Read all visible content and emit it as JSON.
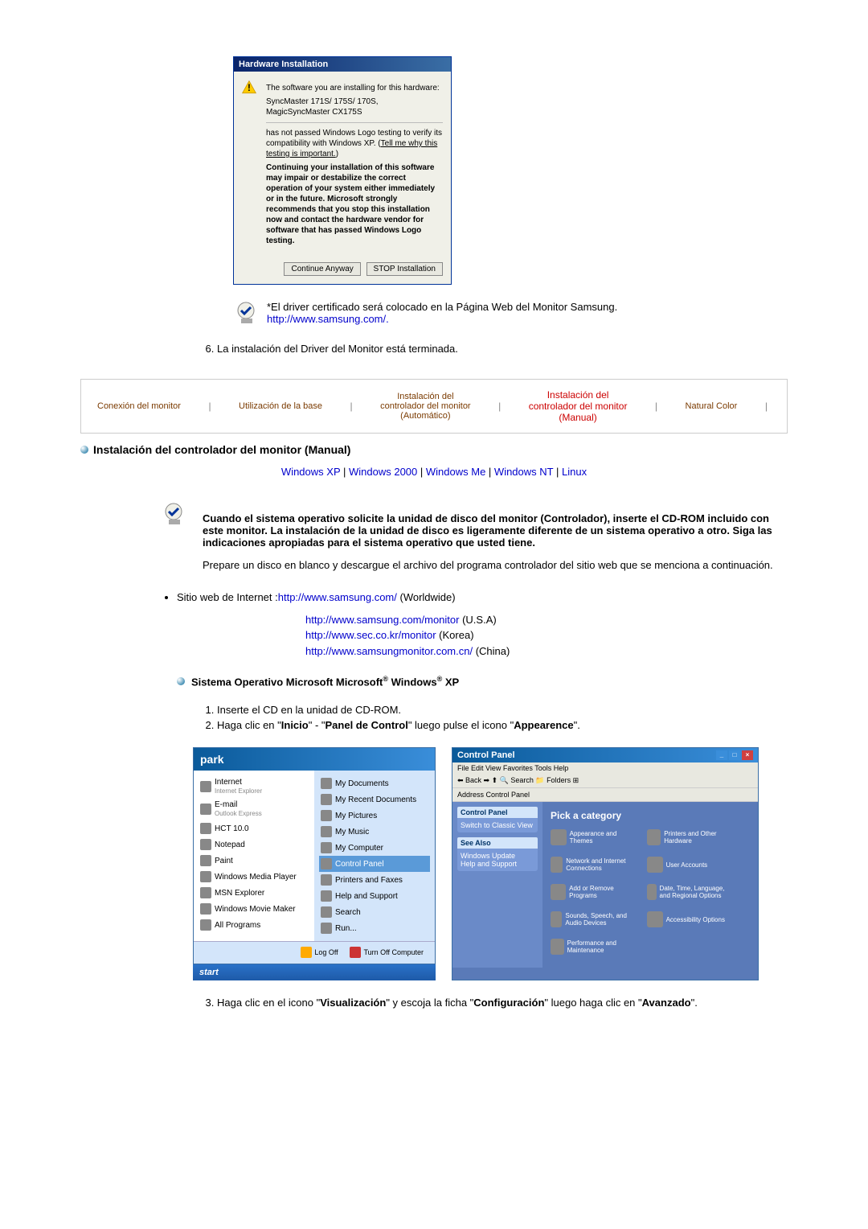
{
  "dialog": {
    "title": "Hardware Installation",
    "line1": "The software you are installing for this hardware:",
    "line2": "SyncMaster 171S/ 175S/ 170S, MagicSyncMaster CX175S",
    "line3a": "has not passed Windows Logo testing to verify its compatibility with Windows XP. (",
    "line3_link": "Tell me why this testing is important.",
    "line3b": ")",
    "line4": "Continuing your installation of this software may impair or destabilize the correct operation of your system either immediately or in the future. Microsoft strongly recommends that you stop this installation now and contact the hardware vendor for software that has passed Windows Logo testing.",
    "btn_continue": "Continue Anyway",
    "btn_stop": "STOP Installation"
  },
  "note": {
    "text": "*El driver certificado será colocado en la Página Web del Monitor Samsung.",
    "link": "http://www.samsung.com/."
  },
  "step6": "La instalación del Driver del Monitor está terminada.",
  "tabs": {
    "t1": "Conexión del monitor",
    "t2": "Utilización de la base",
    "t3a": "Instalación del",
    "t3b": "controlador del monitor",
    "t3c": "(Automático)",
    "t4a": "Instalación del",
    "t4b": "controlador del monitor",
    "t4c": "(Manual)",
    "t5": "Natural Color"
  },
  "section_title": "Instalación del controlador del monitor (Manual)",
  "os_links": {
    "xp": "Windows XP",
    "w2000": "Windows 2000",
    "wme": "Windows Me",
    "wnt": "Windows NT",
    "linux": "Linux"
  },
  "info": {
    "p1": "Cuando el sistema operativo solicite la unidad de disco del monitor (Controlador), inserte el CD-ROM incluido con este monitor. La instalación de la unidad de disco es ligeramente diferente de un sistema operativo a otro. Siga las indicaciones apropiadas para el sistema operativo que usted tiene.",
    "p2": "Prepare un disco en blanco y descargue el archivo del programa controlador del sitio web que se menciona a continuación."
  },
  "sites": {
    "label": "Sitio web de Internet :",
    "s1": "http://www.samsung.com/",
    "s1t": " (Worldwide)",
    "s2": "http://www.samsung.com/monitor",
    "s2t": " (U.S.A)",
    "s3": "http://www.sec.co.kr/monitor",
    "s3t": " (Korea)",
    "s4": "http://www.samsungmonitor.com.cn/",
    "s4t": " (China)"
  },
  "os_section": "Sistema Operativo Microsoft Microsoft",
  "os_section2": " Windows",
  "os_section3": " XP",
  "steps": {
    "s1": "Inserte el CD en la unidad de CD-ROM.",
    "s2a": "Haga clic en \"",
    "s2b": "Inicio",
    "s2c": "\" - \"",
    "s2d": "Panel de Control",
    "s2e": "\" luego pulse el icono \"",
    "s2f": "Appearence",
    "s2g": "\".",
    "s3a": "Haga clic en el icono \"",
    "s3b": "Visualización",
    "s3c": "\" y escoja la ficha \"",
    "s3d": "Configuración",
    "s3e": "\" luego haga clic en \"",
    "s3f": "Avanzado",
    "s3g": "\"."
  },
  "startmenu": {
    "user": "park",
    "left": [
      {
        "label": "Internet",
        "sublabel": "Internet Explorer"
      },
      {
        "label": "E-mail",
        "sublabel": "Outlook Express"
      },
      {
        "label": "HCT 10.0"
      },
      {
        "label": "Notepad"
      },
      {
        "label": "Paint"
      },
      {
        "label": "Windows Media Player"
      },
      {
        "label": "MSN Explorer"
      },
      {
        "label": "Windows Movie Maker"
      },
      {
        "label": "All Programs"
      }
    ],
    "right": [
      {
        "label": "My Documents"
      },
      {
        "label": "My Recent Documents"
      },
      {
        "label": "My Pictures"
      },
      {
        "label": "My Music"
      },
      {
        "label": "My Computer"
      },
      {
        "label": "Control Panel",
        "highlight": true
      },
      {
        "label": "Printers and Faxes"
      },
      {
        "label": "Help and Support"
      },
      {
        "label": "Search"
      },
      {
        "label": "Run..."
      }
    ],
    "logoff": "Log Off",
    "turnoff": "Turn Off Computer",
    "start": "start"
  },
  "cpanel": {
    "title": "Control Panel",
    "menu": "File   Edit   View   Favorites   Tools   Help",
    "addr": "Address   Control Panel",
    "side_title": "Control Panel",
    "side_link": "Switch to Classic View",
    "side_title2": "See Also",
    "side_links2": [
      "Windows Update",
      "Help and Support"
    ],
    "main_title": "Pick a category",
    "cats": [
      "Appearance and Themes",
      "Printers and Other Hardware",
      "Network and Internet Connections",
      "User Accounts",
      "Add or Remove Programs",
      "Date, Time, Language, and Regional Options",
      "Sounds, Speech, and Audio Devices",
      "Accessibility Options",
      "Performance and Maintenance"
    ]
  }
}
